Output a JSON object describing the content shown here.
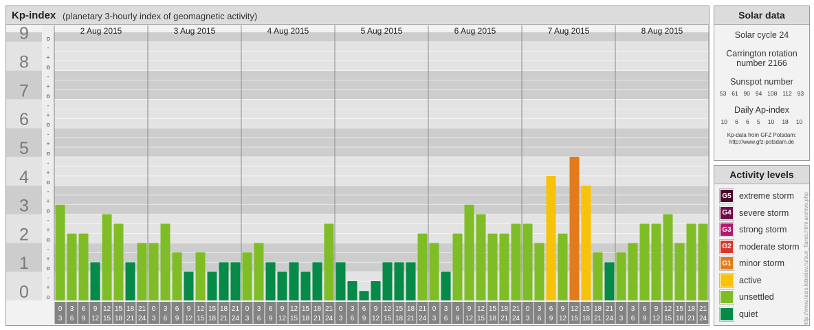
{
  "header": {
    "title": "Kp-index",
    "subtitle": "(planetary 3-hourly index of geomagnetic activity)"
  },
  "chart_data": {
    "type": "bar",
    "title": "Kp-index",
    "subtitle": "(planetary 3-hourly index of geomagnetic activity)",
    "days": [
      "2 Aug 2015",
      "3 Aug 2015",
      "4 Aug 2015",
      "5 Aug 2015",
      "6 Aug 2015",
      "7 Aug 2015",
      "8 Aug 2015"
    ],
    "interval_labels": [
      [
        "0",
        "3"
      ],
      [
        "3",
        "6"
      ],
      [
        "6",
        "9"
      ],
      [
        "9",
        "12"
      ],
      [
        "12",
        "15"
      ],
      [
        "15",
        "18"
      ],
      [
        "18",
        "21"
      ],
      [
        "21",
        "24"
      ]
    ],
    "y_ticks": [
      "0",
      "1",
      "2",
      "3",
      "4",
      "5",
      "6",
      "7",
      "8",
      "9"
    ],
    "sub_ticks": [
      "o",
      "+",
      "-",
      "o"
    ],
    "ylim": [
      0,
      9.33
    ],
    "values": [
      [
        3.33,
        2.33,
        2.33,
        1.33,
        3.0,
        2.67,
        1.33,
        2.0
      ],
      [
        2.0,
        2.67,
        1.67,
        1.0,
        1.67,
        1.0,
        1.33,
        1.33
      ],
      [
        1.67,
        2.0,
        1.33,
        1.0,
        1.33,
        1.0,
        1.33,
        2.67
      ],
      [
        1.33,
        0.67,
        0.33,
        0.67,
        1.33,
        1.33,
        1.33,
        2.33
      ],
      [
        2.0,
        1.0,
        2.33,
        3.33,
        3.0,
        2.33,
        2.33,
        2.67
      ],
      [
        2.67,
        2.0,
        4.33,
        2.33,
        5.0,
        4.0,
        1.67,
        1.33
      ],
      [
        1.67,
        2.0,
        2.67,
        2.67,
        3.0,
        2.0,
        2.67,
        2.67
      ]
    ]
  },
  "solar_data": {
    "title": "Solar data",
    "cycle": "Solar cycle 24",
    "carrington_1": "Carrington rotation",
    "carrington_2": "number 2166",
    "sunspot_title": "Sunspot number",
    "sunspot_numbers": [
      "53",
      "61",
      "90",
      "94",
      "108",
      "112",
      "93"
    ],
    "ap_title": "Daily Ap-index",
    "ap_values": [
      "10",
      "6",
      "6",
      "5",
      "10",
      "18",
      "10"
    ],
    "source_1": "Kp-data from GFZ Potsdam:",
    "source_2": "http://www.gfz-potsdam.de"
  },
  "activity_levels": {
    "title": "Activity levels",
    "items": [
      {
        "code": "G5",
        "label": "extreme storm",
        "color": "#4d0a2e"
      },
      {
        "code": "G4",
        "label": "severe storm",
        "color": "#6e0f45"
      },
      {
        "code": "G3",
        "label": "strong storm",
        "color": "#b5176e"
      },
      {
        "code": "G2",
        "label": "moderate storm",
        "color": "#d8392b"
      },
      {
        "code": "G1",
        "label": "minor storm",
        "color": "#e27b1b"
      },
      {
        "code": "",
        "label": "active",
        "color": "#f7c20a"
      },
      {
        "code": "",
        "label": "unsettled",
        "color": "#7fbd26"
      },
      {
        "code": "",
        "label": "quiet",
        "color": "#068a48"
      }
    ]
  },
  "watermark": "http://www.tesis.lebedev.ru/sun_flares.html archive.php"
}
